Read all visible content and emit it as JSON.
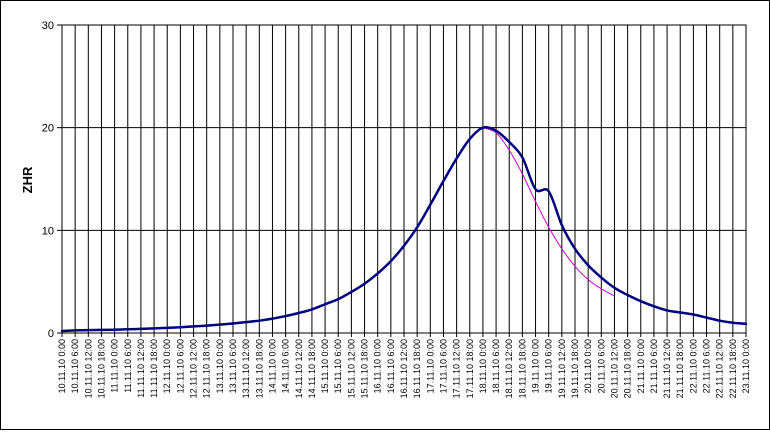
{
  "chart_data": {
    "type": "line",
    "title": "",
    "ylabel": "ZHR",
    "xlabel": "",
    "ylim": [
      0,
      30
    ],
    "y_ticks": [
      0,
      10,
      20,
      30
    ],
    "grid": true,
    "x_tick_labels": [
      "10.11.10 0:00",
      "10.11.10 6:00",
      "10.11.10 12:00",
      "10.11.10 18:00",
      "11.11.10 0:00",
      "11.11.10 6:00",
      "11.11.10 12:00",
      "11.11.10 18:00",
      "12.11.10 0:00",
      "12.11.10 6:00",
      "12.11.10 12:00",
      "12.11.10 18:00",
      "13.11.10 0:00",
      "13.11.10 6:00",
      "13.11.10 12:00",
      "13.11.10 18:00",
      "14.11.10 0:00",
      "14.11.10 6:00",
      "14.11.10 12:00",
      "14.11.10 18:00",
      "15.11.10 0:00",
      "15.11.10 6:00",
      "15.11.10 12:00",
      "15.11.10 18:00",
      "16.11.10 0:00",
      "16.11.10 6:00",
      "16.11.10 12:00",
      "16.11.10 18:00",
      "17.11.10 0:00",
      "17.11.10 6:00",
      "17.11.10 12:00",
      "17.11.10 18:00",
      "18.11.10 0:00",
      "18.11.10 6:00",
      "18.11.10 12:00",
      "18.11.10 18:00",
      "19.11.10 0:00",
      "19.11.10 6:00",
      "19.11.10 12:00",
      "19.11.10 18:00",
      "20.11.10 0:00",
      "20.11.10 6:00",
      "20.11.10 12:00",
      "20.11.10 18:00",
      "21.11.10 0:00",
      "21.11.10 6:00",
      "21.11.10 12:00",
      "21.11.10 18:00",
      "22.11.10 0:00",
      "22.11.10 6:00",
      "22.11.10 12:00",
      "22.11.10 18:00",
      "23.11.10 0:00"
    ],
    "series": [
      {
        "color": "#000080",
        "x": [
          0,
          1,
          2,
          3,
          4,
          5,
          6,
          7,
          8,
          9,
          10,
          11,
          12,
          13,
          14,
          15,
          16,
          17,
          18,
          19,
          20,
          21,
          22,
          23,
          24,
          25,
          26,
          27,
          28,
          29,
          30,
          31,
          32,
          33,
          34,
          35,
          36,
          37,
          38,
          39,
          40,
          41,
          42,
          43,
          44,
          45,
          46,
          47,
          48,
          49,
          50,
          51,
          52
        ],
        "values": [
          0.2,
          0.25,
          0.28,
          0.3,
          0.32,
          0.36,
          0.4,
          0.45,
          0.5,
          0.56,
          0.64,
          0.72,
          0.82,
          0.93,
          1.06,
          1.2,
          1.4,
          1.65,
          1.95,
          2.3,
          2.8,
          3.3,
          4.0,
          4.8,
          5.8,
          7.0,
          8.5,
          10.3,
          12.5,
          14.8,
          17.0,
          18.9,
          20.0,
          19.7,
          18.6,
          17.1,
          14.0,
          13.8,
          10.5,
          8.2,
          6.6,
          5.4,
          4.4,
          3.7,
          3.1,
          2.6,
          2.2,
          2.0,
          1.8,
          1.5,
          1.2,
          1.0,
          0.9
        ]
      },
      {
        "color": "#cc00cc",
        "x": [
          32,
          33,
          34,
          35,
          36,
          37,
          38,
          39,
          40,
          41,
          42
        ],
        "values": [
          20.0,
          19.5,
          17.8,
          15.5,
          12.8,
          10.3,
          8.2,
          6.5,
          5.2,
          4.3,
          3.6
        ]
      }
    ]
  }
}
